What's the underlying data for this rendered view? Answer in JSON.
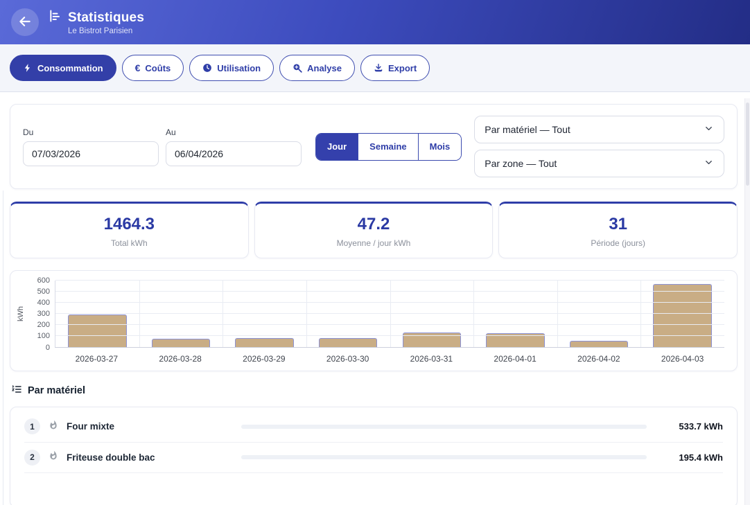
{
  "header": {
    "title": "Statistiques",
    "subtitle": "Le Bistrot Parisien"
  },
  "tabs": [
    {
      "label": "Consommation",
      "icon": "lightning-icon",
      "active": true
    },
    {
      "label": "Coûts",
      "icon": "euro-icon",
      "active": false
    },
    {
      "label": "Utilisation",
      "icon": "clock-icon",
      "active": false
    },
    {
      "label": "Analyse",
      "icon": "zoom-in-icon",
      "active": false
    },
    {
      "label": "Export",
      "icon": "download-icon",
      "active": false
    }
  ],
  "filters": {
    "from_label": "Du",
    "from_value": "07/03/2026",
    "to_label": "Au",
    "to_value": "06/04/2026",
    "granularity": [
      {
        "label": "Jour",
        "active": true
      },
      {
        "label": "Semaine",
        "active": false
      },
      {
        "label": "Mois",
        "active": false
      }
    ],
    "material_select": "Par matériel — Tout",
    "zone_select": "Par zone — Tout"
  },
  "stats": [
    {
      "value": "1464.3",
      "label": "Total kWh"
    },
    {
      "value": "47.2",
      "label": "Moyenne / jour kWh"
    },
    {
      "value": "31",
      "label": "Période (jours)"
    }
  ],
  "chart_data": {
    "type": "bar",
    "categories": [
      "2026-03-27",
      "2026-03-28",
      "2026-03-29",
      "2026-03-30",
      "2026-03-31",
      "2026-04-01",
      "2026-04-02",
      "2026-04-03"
    ],
    "values": [
      290,
      70,
      80,
      76,
      130,
      122,
      55,
      565
    ],
    "title": "",
    "xlabel": "",
    "ylabel": "kWh",
    "ylim": [
      0,
      600
    ],
    "yticks": [
      0,
      100,
      200,
      300,
      400,
      500,
      600
    ],
    "grid": true,
    "legend": false,
    "bar_color": "#c9ad85",
    "bar_border_color": "#8b92d8"
  },
  "material_section": {
    "title": "Par matériel",
    "items": [
      {
        "rank": "1",
        "name": "Four mixte",
        "value": "533.7 kWh"
      },
      {
        "rank": "2",
        "name": "Friteuse double bac",
        "value": "195.4 kWh"
      }
    ]
  },
  "colors": {
    "header_gradient_start": "#5a6ad8",
    "header_gradient_end": "#232d86",
    "primary_indigo": "#333fa8",
    "stat_number": "#2b3aa4",
    "bar_fill": "#c9ad85",
    "bar_border": "#8b92d8"
  }
}
